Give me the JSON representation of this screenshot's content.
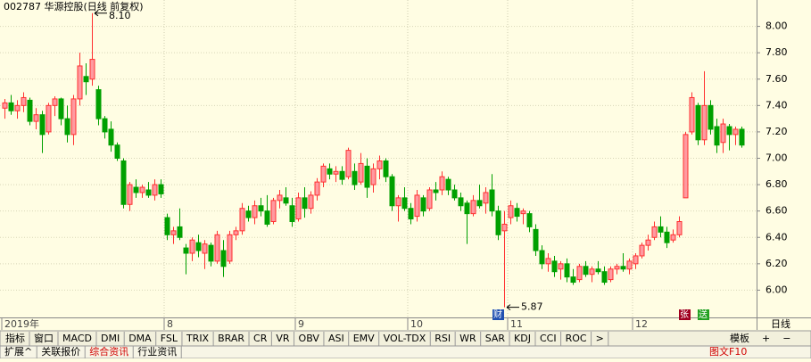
{
  "chart_data": {
    "type": "candlestick",
    "title": "002787 华源控股(日线 前复权)",
    "categories": [
      "2019年",
      null,
      null,
      null,
      null,
      null,
      null,
      null,
      null,
      null,
      null,
      null,
      null,
      null,
      null,
      null,
      null,
      null,
      null,
      null,
      null,
      null,
      null,
      null,
      null,
      null,
      "8",
      null,
      null,
      null,
      null,
      null,
      null,
      null,
      null,
      null,
      null,
      null,
      null,
      null,
      null,
      null,
      null,
      null,
      null,
      null,
      null,
      "9",
      null,
      null,
      null,
      null,
      null,
      null,
      null,
      null,
      null,
      null,
      null,
      null,
      null,
      null,
      null,
      null,
      null,
      "10",
      null,
      null,
      null,
      null,
      null,
      null,
      null,
      null,
      null,
      null,
      null,
      null,
      null,
      null,
      null,
      "11",
      null,
      null,
      null,
      null,
      null,
      null,
      null,
      null,
      null,
      null,
      null,
      null,
      null,
      null,
      null,
      null,
      null,
      null,
      null,
      "12",
      null,
      null,
      null,
      null,
      null,
      null,
      null,
      null,
      null,
      null,
      null,
      null,
      null,
      null,
      null,
      null,
      null
    ],
    "values": [
      [
        7.38,
        7.45,
        7.3,
        7.42
      ],
      [
        7.42,
        7.48,
        7.33,
        7.36
      ],
      [
        7.36,
        7.44,
        7.3,
        7.4
      ],
      [
        7.4,
        7.5,
        7.35,
        7.46
      ],
      [
        7.44,
        7.46,
        7.25,
        7.28
      ],
      [
        7.28,
        7.38,
        7.22,
        7.33
      ],
      [
        7.33,
        7.36,
        7.04,
        7.18
      ],
      [
        7.2,
        7.42,
        7.18,
        7.4
      ],
      [
        7.4,
        7.47,
        7.32,
        7.45
      ],
      [
        7.45,
        7.46,
        7.25,
        7.3
      ],
      [
        7.3,
        7.4,
        7.12,
        7.18
      ],
      [
        7.18,
        7.48,
        7.1,
        7.45
      ],
      [
        7.45,
        7.8,
        7.4,
        7.7
      ],
      [
        7.62,
        7.72,
        7.48,
        7.58
      ],
      [
        7.6,
        8.1,
        7.55,
        7.75
      ],
      [
        7.52,
        7.55,
        7.25,
        7.3
      ],
      [
        7.3,
        7.32,
        7.15,
        7.2
      ],
      [
        7.22,
        7.28,
        7.05,
        7.1
      ],
      [
        7.1,
        7.12,
        6.98,
        7.0
      ],
      [
        6.98,
        7.0,
        6.62,
        6.65
      ],
      [
        6.65,
        6.82,
        6.6,
        6.8
      ],
      [
        6.78,
        6.84,
        6.7,
        6.74
      ],
      [
        6.74,
        6.8,
        6.7,
        6.78
      ],
      [
        6.76,
        6.82,
        6.7,
        6.72
      ],
      [
        6.72,
        6.84,
        6.68,
        6.8
      ],
      [
        6.8,
        6.84,
        6.7,
        6.73
      ],
      [
        6.55,
        6.58,
        6.38,
        6.42
      ],
      [
        6.42,
        6.48,
        6.35,
        6.45
      ],
      [
        6.48,
        6.62,
        6.38,
        6.4
      ],
      [
        6.32,
        6.35,
        6.12,
        6.28
      ],
      [
        6.28,
        6.4,
        6.22,
        6.38
      ],
      [
        6.36,
        6.42,
        6.25,
        6.3
      ],
      [
        6.28,
        6.38,
        6.16,
        6.35
      ],
      [
        6.34,
        6.36,
        6.18,
        6.22
      ],
      [
        6.22,
        6.45,
        6.2,
        6.42
      ],
      [
        6.3,
        6.38,
        6.1,
        6.18
      ],
      [
        6.22,
        6.45,
        6.2,
        6.42
      ],
      [
        6.42,
        6.48,
        6.38,
        6.45
      ],
      [
        6.45,
        6.66,
        6.42,
        6.62
      ],
      [
        6.6,
        6.64,
        6.52,
        6.55
      ],
      [
        6.55,
        6.68,
        6.5,
        6.64
      ],
      [
        6.64,
        6.7,
        6.56,
        6.6
      ],
      [
        6.6,
        6.72,
        6.48,
        6.5
      ],
      [
        6.52,
        6.7,
        6.5,
        6.68
      ],
      [
        6.68,
        6.76,
        6.62,
        6.72
      ],
      [
        6.7,
        6.78,
        6.64,
        6.66
      ],
      [
        6.64,
        6.7,
        6.48,
        6.52
      ],
      [
        6.54,
        6.74,
        6.52,
        6.7
      ],
      [
        6.7,
        6.78,
        6.55,
        6.62
      ],
      [
        6.62,
        6.75,
        6.58,
        6.72
      ],
      [
        6.72,
        6.85,
        6.68,
        6.82
      ],
      [
        6.82,
        6.96,
        6.78,
        6.94
      ],
      [
        6.92,
        6.96,
        6.84,
        6.88
      ],
      [
        6.88,
        6.94,
        6.82,
        6.9
      ],
      [
        6.9,
        6.94,
        6.8,
        6.84
      ],
      [
        6.86,
        7.08,
        6.84,
        7.06
      ],
      [
        6.9,
        6.96,
        6.76,
        6.8
      ],
      [
        6.82,
        7.04,
        6.8,
        6.96
      ],
      [
        6.94,
        7.0,
        6.7,
        6.78
      ],
      [
        6.8,
        6.96,
        6.74,
        6.92
      ],
      [
        6.92,
        7.02,
        6.84,
        6.98
      ],
      [
        6.98,
        7.0,
        6.82,
        6.86
      ],
      [
        6.86,
        6.88,
        6.6,
        6.64
      ],
      [
        6.64,
        6.72,
        6.52,
        6.7
      ],
      [
        6.7,
        6.78,
        6.6,
        6.62
      ],
      [
        6.62,
        6.66,
        6.5,
        6.54
      ],
      [
        6.56,
        6.76,
        6.52,
        6.72
      ],
      [
        6.7,
        6.72,
        6.56,
        6.6
      ],
      [
        6.62,
        6.78,
        6.6,
        6.76
      ],
      [
        6.76,
        6.82,
        6.68,
        6.74
      ],
      [
        6.76,
        6.9,
        6.72,
        6.86
      ],
      [
        6.84,
        6.86,
        6.72,
        6.76
      ],
      [
        6.76,
        6.8,
        6.68,
        6.7
      ],
      [
        6.7,
        6.74,
        6.6,
        6.64
      ],
      [
        6.66,
        6.68,
        6.35,
        6.58
      ],
      [
        6.58,
        6.72,
        6.56,
        6.68
      ],
      [
        6.68,
        6.8,
        6.62,
        6.64
      ],
      [
        6.66,
        6.78,
        6.58,
        6.74
      ],
      [
        6.76,
        6.88,
        6.56,
        6.6
      ],
      [
        6.6,
        6.64,
        6.38,
        6.42
      ],
      [
        6.45,
        6.6,
        5.87,
        6.5
      ],
      [
        6.55,
        6.68,
        6.5,
        6.64
      ],
      [
        6.62,
        6.66,
        6.52,
        6.56
      ],
      [
        6.58,
        6.62,
        6.5,
        6.6
      ],
      [
        6.58,
        6.6,
        6.44,
        6.48
      ],
      [
        6.46,
        6.5,
        6.26,
        6.3
      ],
      [
        6.3,
        6.34,
        6.16,
        6.2
      ],
      [
        6.2,
        6.28,
        6.14,
        6.24
      ],
      [
        6.22,
        6.26,
        6.1,
        6.14
      ],
      [
        6.16,
        6.22,
        6.08,
        6.2
      ],
      [
        6.2,
        6.24,
        6.06,
        6.1
      ],
      [
        6.1,
        6.16,
        6.04,
        6.06
      ],
      [
        6.08,
        6.2,
        6.06,
        6.18
      ],
      [
        6.18,
        6.22,
        6.1,
        6.12
      ],
      [
        6.12,
        6.18,
        6.06,
        6.16
      ],
      [
        6.16,
        6.22,
        6.12,
        6.14
      ],
      [
        6.14,
        6.18,
        6.04,
        6.06
      ],
      [
        6.08,
        6.18,
        6.06,
        6.16
      ],
      [
        6.16,
        6.2,
        6.12,
        6.18
      ],
      [
        6.18,
        6.28,
        6.14,
        6.16
      ],
      [
        6.16,
        6.24,
        6.12,
        6.22
      ],
      [
        6.2,
        6.28,
        6.16,
        6.26
      ],
      [
        6.26,
        6.36,
        6.24,
        6.34
      ],
      [
        6.34,
        6.42,
        6.3,
        6.38
      ],
      [
        6.4,
        6.52,
        6.38,
        6.48
      ],
      [
        6.48,
        6.56,
        6.4,
        6.44
      ],
      [
        6.44,
        6.48,
        6.32,
        6.36
      ],
      [
        6.38,
        6.46,
        6.36,
        6.42
      ],
      [
        6.42,
        6.56,
        6.4,
        6.52
      ],
      [
        6.7,
        7.2,
        6.7,
        7.18
      ],
      [
        7.2,
        7.5,
        7.18,
        7.46
      ],
      [
        7.4,
        7.42,
        7.1,
        7.14
      ],
      [
        7.14,
        7.66,
        7.1,
        7.4
      ],
      [
        7.4,
        7.44,
        7.18,
        7.22
      ],
      [
        7.24,
        7.3,
        7.04,
        7.1
      ],
      [
        7.12,
        7.3,
        7.04,
        7.26
      ],
      [
        7.24,
        7.26,
        7.06,
        7.18
      ],
      [
        7.18,
        7.24,
        7.1,
        7.22
      ],
      [
        7.22,
        7.24,
        7.08,
        7.1
      ]
    ],
    "up_color": "#ff3030",
    "down_color": "#00a000",
    "ylim": [
      5.8,
      8.2
    ],
    "yticks": [
      {
        "value": 6,
        "label": "6.00"
      },
      {
        "value": 6.2,
        "label": "6.20"
      },
      {
        "value": 6.4,
        "label": "6.40"
      },
      {
        "value": 6.6,
        "label": "6.60"
      },
      {
        "value": 6.8,
        "label": "6.80"
      },
      {
        "value": 7,
        "label": "7.00"
      },
      {
        "value": 7.2,
        "label": "7.20"
      },
      {
        "value": 7.4,
        "label": "7.40"
      },
      {
        "value": 7.6,
        "label": "7.60"
      },
      {
        "value": 7.8,
        "label": "7.80"
      },
      {
        "value": 8,
        "label": "8.00"
      }
    ],
    "grid": true,
    "max_label": "8.10",
    "min_label": "5.87"
  },
  "ui": {
    "period": "日线",
    "markers": [
      "财",
      "张",
      "送"
    ],
    "tabs": [
      "指标",
      "窗口",
      "MACD",
      "DMI",
      "DMA",
      "FSL",
      "TRIX",
      "BRAR",
      "CR",
      "VR",
      "OBV",
      "ASI",
      "EMV",
      "VOL-TDX",
      "RSI",
      "WR",
      "SAR",
      "KDJ",
      "CCI",
      "ROC",
      ">"
    ],
    "tabs_right": [
      "模板",
      "+",
      "−"
    ],
    "bottom_tabs": [
      "扩展^",
      "关联报价",
      "综合资讯",
      "行业资讯"
    ],
    "bottom_right": "图文F10"
  }
}
